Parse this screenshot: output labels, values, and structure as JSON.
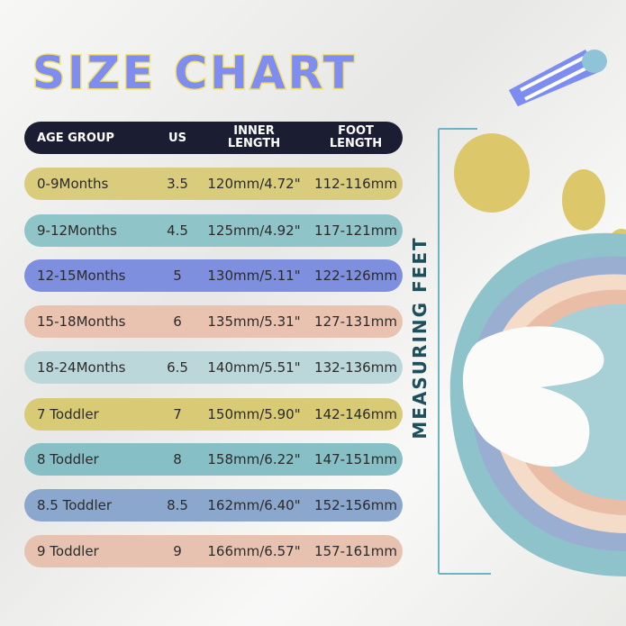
{
  "title": "SIZE CHART",
  "side_label": "MEASURING FEET",
  "table": {
    "headers": {
      "age_group": "AGE GROUP",
      "us": "US",
      "inner_length_1": "INNER",
      "inner_length_2": "LENGTH",
      "foot_length_1": "FOOT",
      "foot_length_2": "LENGTH"
    },
    "rows": [
      {
        "age": "0-9Months",
        "us": "3.5",
        "inner": "120mm/4.72\"",
        "foot": "112-116mm",
        "color": "#d9cc7c"
      },
      {
        "age": "9-12Months",
        "us": "4.5",
        "inner": "125mm/4.92\"",
        "foot": "117-121mm",
        "color": "#8fc4c8"
      },
      {
        "age": "12-15Months",
        "us": "5",
        "inner": "130mm/5.11\"",
        "foot": "122-126mm",
        "color": "#7e8fe0"
      },
      {
        "age": "15-18Months",
        "us": "6",
        "inner": "135mm/5.31\"",
        "foot": "127-131mm",
        "color": "#e9c3b0"
      },
      {
        "age": "18-24Months",
        "us": "6.5",
        "inner": "140mm/5.51\"",
        "foot": "132-136mm",
        "color": "#bcd7da"
      },
      {
        "age": "7 Toddler",
        "us": "7",
        "inner": "150mm/5.90\"",
        "foot": "142-146mm",
        "color": "#d9cb76"
      },
      {
        "age": "8 Toddler",
        "us": "8",
        "inner": "158mm/6.22\"",
        "foot": "147-151mm",
        "color": "#86bfc6"
      },
      {
        "age": "8.5 Toddler",
        "us": "8.5",
        "inner": "162mm/6.40\"",
        "foot": "152-156mm",
        "color": "#8ca7cd"
      },
      {
        "age": "9 Toddler",
        "us": "9",
        "inner": "166mm/6.57\"",
        "foot": "157-161mm",
        "color": "#e8c2b0"
      }
    ]
  },
  "colors": {
    "header_bg": "#1b1d33",
    "title_fill": "#7f8cf0",
    "title_outline": "#f0e06a"
  }
}
